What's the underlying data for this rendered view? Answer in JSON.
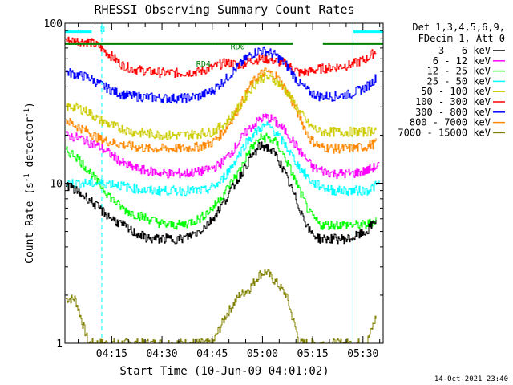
{
  "chart_data": {
    "type": "line",
    "title": "RHESSI Observing Summary Count Rates",
    "xlabel": "Start Time (10-Jun-09 04:01:02)",
    "ylabel": "Count Rate (s^-1 detector^-1)",
    "ylabel_main": "Count Rate (s",
    "ylabel_sup1": "-1",
    "ylabel_mid": " detector",
    "ylabel_sup2": "-1",
    "ylabel_end": ")",
    "yscale": "log",
    "ylim": [
      1,
      100
    ],
    "xlim_minutes": [
      0,
      95
    ],
    "x_ticks": [
      {
        "label": "04:15",
        "minute": 13.97
      },
      {
        "label": "04:30",
        "minute": 28.97
      },
      {
        "label": "04:45",
        "minute": 43.97
      },
      {
        "label": "05:00",
        "minute": 58.97
      },
      {
        "label": "05:15",
        "minute": 73.97
      },
      {
        "label": "05:30",
        "minute": 88.97
      }
    ],
    "y_ticks": [
      {
        "label": "1",
        "value": 1
      },
      {
        "label": "10",
        "value": 10
      },
      {
        "label": "100",
        "value": 100
      }
    ],
    "legend_header": [
      "Det 1,3,4,5,6,9,",
      "FDecim 1, Att 0"
    ],
    "legend_position": "right",
    "series": [
      {
        "name": "3 - 6 keV",
        "color": "#000000",
        "x": [
          0,
          3,
          7,
          10,
          14,
          17,
          20,
          25,
          30,
          35,
          40,
          44,
          48,
          52,
          55,
          58,
          60,
          63,
          66,
          70,
          73,
          76,
          80,
          85,
          90,
          93
        ],
        "values": [
          10,
          9,
          8,
          7,
          6,
          5.5,
          5,
          4.5,
          4.5,
          4.5,
          5,
          6,
          8,
          11,
          14,
          17,
          17,
          15,
          11,
          7,
          5,
          4.5,
          4.5,
          4.5,
          5,
          6
        ]
      },
      {
        "name": "6 - 12 keV",
        "color": "#ff00ff",
        "x": [
          0,
          5,
          10,
          14,
          18,
          24,
          30,
          36,
          42,
          46,
          50,
          54,
          58,
          60,
          62,
          66,
          70,
          74,
          80,
          86,
          90,
          94
        ],
        "values": [
          20,
          19,
          17,
          15,
          13,
          12,
          11.5,
          11.5,
          12,
          13,
          16,
          21,
          25,
          26,
          25,
          21,
          16,
          12.5,
          11.5,
          11.5,
          12,
          13
        ]
      },
      {
        "name": "12 - 25 keV",
        "color": "#00ff00",
        "x": [
          0,
          3,
          7,
          10,
          14,
          17,
          20,
          25,
          30,
          35,
          40,
          44,
          48,
          52,
          55,
          58,
          60,
          63,
          66,
          70,
          73,
          76,
          80,
          85,
          90,
          93
        ],
        "values": [
          16,
          15,
          12,
          10,
          8,
          7,
          6.5,
          6,
          5.5,
          5.5,
          6,
          7,
          9,
          12,
          16,
          19,
          19.5,
          18,
          14,
          9,
          6.5,
          5.5,
          5.5,
          5.5,
          5.5,
          6
        ]
      },
      {
        "name": "25 - 50 keV",
        "color": "#00ffff",
        "x": [
          0,
          5,
          10,
          14,
          18,
          24,
          30,
          36,
          42,
          46,
          50,
          54,
          58,
          60,
          62,
          66,
          70,
          74,
          80,
          86,
          90,
          94
        ],
        "values": [
          10,
          10,
          10,
          10,
          9.5,
          9,
          9,
          9,
          9,
          10,
          13,
          18,
          22,
          23,
          22,
          17,
          12.5,
          10,
          9,
          9,
          9,
          10
        ]
      },
      {
        "name": "50 - 100 keV",
        "color": "#cccc00",
        "x": [
          0,
          3,
          7,
          10,
          14,
          17,
          20,
          25,
          30,
          35,
          40,
          44,
          48,
          52,
          55,
          58,
          60,
          63,
          66,
          70,
          73,
          76,
          80,
          85,
          90,
          93
        ],
        "values": [
          30,
          30,
          28,
          25,
          23,
          22,
          21,
          20.5,
          20,
          20,
          20.5,
          21,
          24,
          30,
          38,
          45,
          46,
          44,
          38,
          28,
          23,
          21,
          21,
          21,
          21,
          22
        ]
      },
      {
        "name": "100 - 300 keV",
        "color": "#ff0000",
        "x": [
          0,
          3,
          7,
          10,
          14,
          17,
          20,
          25,
          30,
          35,
          40,
          44,
          48,
          52,
          55,
          58,
          60,
          63,
          66,
          70,
          73,
          76,
          80,
          85,
          90,
          93
        ],
        "values": [
          78,
          78,
          77,
          72,
          62,
          55,
          52,
          50,
          49,
          49,
          50,
          53,
          57,
          55,
          58,
          60,
          60,
          58,
          56,
          49,
          50,
          52,
          53,
          55,
          60,
          68
        ]
      },
      {
        "name": "300 - 800 keV",
        "color": "#0000ff",
        "x": [
          0,
          3,
          7,
          10,
          14,
          17,
          20,
          25,
          30,
          35,
          40,
          44,
          48,
          52,
          55,
          58,
          60,
          63,
          66,
          70,
          73,
          76,
          80,
          85,
          90,
          93
        ],
        "values": [
          50,
          48,
          46,
          42,
          38,
          36,
          35,
          34.5,
          34,
          34,
          35,
          38,
          45,
          55,
          63,
          68,
          67,
          63,
          55,
          42,
          37,
          35,
          35,
          36,
          40,
          46
        ]
      },
      {
        "name": "800 - 7000 keV",
        "color": "#ff8800",
        "x": [
          0,
          3,
          7,
          10,
          14,
          17,
          20,
          25,
          30,
          35,
          40,
          44,
          48,
          52,
          55,
          58,
          60,
          63,
          66,
          70,
          73,
          76,
          80,
          85,
          90,
          93
        ],
        "values": [
          25,
          23,
          21,
          19,
          18,
          17.5,
          17,
          16.5,
          16.5,
          16.5,
          17,
          18,
          22,
          30,
          40,
          48,
          50,
          47,
          38,
          26,
          19,
          17,
          16.5,
          16.5,
          17,
          18
        ]
      },
      {
        "name": "7000 - 15000 keV",
        "color": "#808000",
        "x": [
          0,
          3,
          7,
          10,
          14,
          17,
          20,
          25,
          30,
          35,
          40,
          44,
          48,
          52,
          55,
          58,
          60,
          63,
          66,
          70,
          73,
          76,
          80,
          85,
          90,
          93
        ],
        "values": [
          1.9,
          1.9,
          1,
          1,
          1,
          1,
          1,
          1,
          1,
          1,
          1,
          1,
          1.5,
          2,
          2.2,
          2.7,
          2.8,
          2.4,
          2,
          1,
          1,
          1,
          1,
          1,
          1,
          1.5
        ]
      }
    ],
    "annotations": [
      {
        "label": "RD0",
        "color": "#008000",
        "x": 48
      },
      {
        "label": "RD4",
        "color": "#008000",
        "x": 44
      },
      {
        "label": "N",
        "color": "#00ffff",
        "x": 11
      }
    ],
    "bars": {
      "decimation": {
        "color": "#008000",
        "value": 0.97,
        "segments": [
          [
            0,
            44
          ],
          [
            44,
            68
          ],
          [
            77,
            95
          ]
        ]
      },
      "night": {
        "color": "#00ffff",
        "value": 1.0,
        "segments": [
          [
            0,
            8
          ],
          [
            86,
            95
          ]
        ]
      }
    },
    "vlines": {
      "color": "#00ffff",
      "solid": [
        0,
        86
      ],
      "dashed": [
        11,
        95
      ]
    },
    "timestamp": "14-Oct-2021 23:40"
  }
}
